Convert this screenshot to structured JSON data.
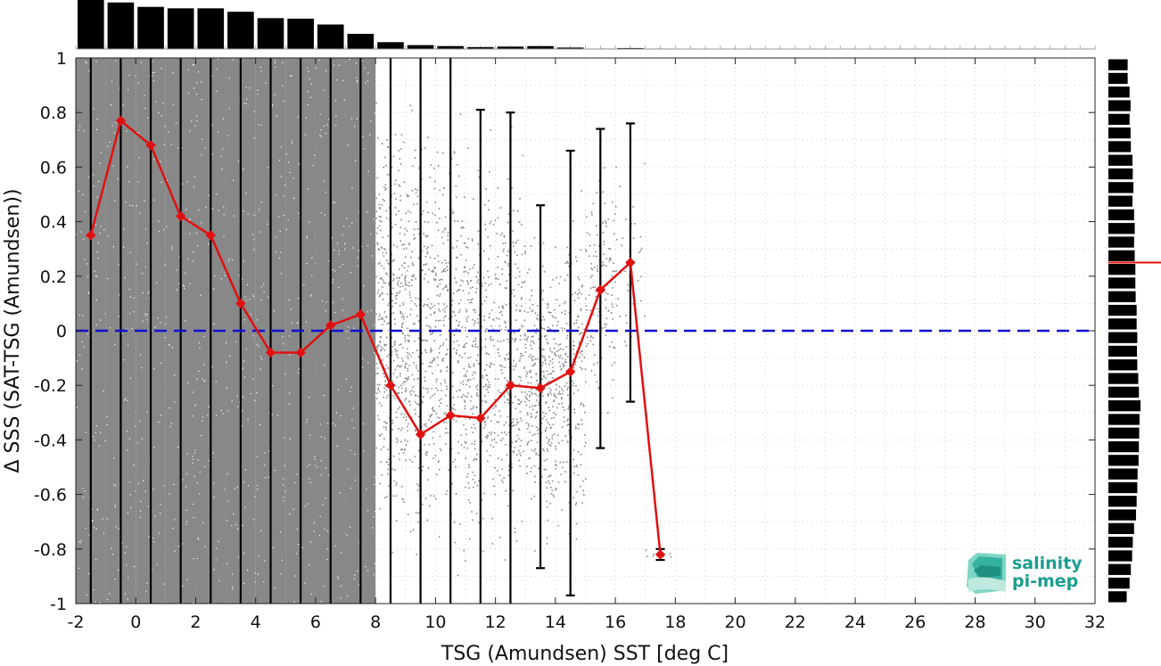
{
  "chart_data": {
    "type": "scatter",
    "xlabel": "TSG (Amundsen) SST [deg C]",
    "ylabel": "Δ SSS (SAT-TSG (Amundsen))",
    "xlim": [
      -2,
      32
    ],
    "ylim": [
      -1,
      1
    ],
    "xticks": [
      -2,
      0,
      2,
      4,
      6,
      8,
      10,
      12,
      14,
      16,
      18,
      20,
      22,
      24,
      26,
      28,
      30,
      32
    ],
    "yticks": [
      -1,
      -0.8,
      -0.6,
      -0.4,
      -0.2,
      0,
      0.2,
      0.4,
      0.6,
      0.8,
      1
    ],
    "grid": true,
    "zero_line": {
      "y": 0,
      "color": "#1010d0",
      "style": "dashed"
    },
    "scatter_color": "#888888",
    "scatter_density_by_bin": [
      1,
      1,
      1,
      1,
      1,
      1,
      1,
      1,
      1,
      1,
      0.45,
      0.35,
      0.3,
      0.3,
      0.3,
      0.35,
      0.25,
      0.15,
      0.04,
      0.01
    ],
    "bin_means": {
      "name": "",
      "color": "#e01010",
      "x": [
        -1.5,
        -0.5,
        0.5,
        1.5,
        2.5,
        3.5,
        4.5,
        5.5,
        6.5,
        7.5,
        8.5,
        9.5,
        10.5,
        11.5,
        12.5,
        13.5,
        14.5,
        15.5,
        16.5,
        17.5
      ],
      "y": [
        0.35,
        0.77,
        0.68,
        0.42,
        0.35,
        0.1,
        -0.08,
        -0.08,
        0.02,
        0.06,
        -0.2,
        -0.38,
        -0.31,
        -0.32,
        -0.2,
        -0.21,
        -0.15,
        0.15,
        0.25,
        -0.82
      ],
      "err_low": [
        -1,
        -1,
        -1,
        -1,
        -1,
        -1,
        -1,
        -1,
        -1,
        -1,
        -1,
        -1,
        -1,
        -1,
        -1,
        -0.87,
        -0.97,
        -0.43,
        -0.26,
        -0.84
      ],
      "err_high": [
        1,
        1,
        1,
        1,
        1,
        1,
        1,
        1,
        1,
        1,
        1,
        1,
        1,
        0.81,
        0.8,
        0.46,
        0.66,
        0.74,
        0.76,
        -0.8
      ]
    },
    "top_histogram": {
      "bins_x": [
        -1.5,
        -0.5,
        0.5,
        1.5,
        2.5,
        3.5,
        4.5,
        5.5,
        6.5,
        7.5,
        8.5,
        9.5,
        10.5,
        11.5,
        12.5,
        13.5,
        14.5,
        15.5,
        16.5,
        17.5
      ],
      "counts": [
        1.0,
        0.95,
        0.86,
        0.83,
        0.83,
        0.76,
        0.63,
        0.62,
        0.5,
        0.31,
        0.14,
        0.08,
        0.06,
        0.04,
        0.05,
        0.06,
        0.03,
        0.01,
        0.02,
        0.01
      ]
    },
    "right_histogram": {
      "bins_y": [
        0.975,
        0.925,
        0.875,
        0.825,
        0.775,
        0.725,
        0.675,
        0.625,
        0.575,
        0.525,
        0.475,
        0.425,
        0.375,
        0.325,
        0.275,
        0.225,
        0.175,
        0.125,
        0.075,
        0.025,
        -0.025,
        -0.075,
        -0.125,
        -0.175,
        -0.225,
        -0.275,
        -0.325,
        -0.375,
        -0.425,
        -0.475,
        -0.525,
        -0.575,
        -0.625,
        -0.675,
        -0.725,
        -0.775,
        -0.825,
        -0.875,
        -0.925,
        -0.975
      ],
      "counts": [
        0.6,
        0.6,
        0.66,
        0.69,
        0.66,
        0.69,
        0.7,
        0.75,
        0.76,
        0.78,
        0.75,
        0.8,
        0.82,
        0.8,
        0.82,
        0.84,
        0.84,
        0.85,
        0.88,
        0.88,
        0.9,
        0.89,
        0.9,
        0.93,
        0.95,
        1.0,
        0.97,
        0.96,
        0.95,
        0.94,
        0.91,
        0.9,
        0.88,
        0.86,
        0.8,
        0.76,
        0.74,
        0.7,
        0.66,
        0.57
      ],
      "mean_marker_y": 0.25
    }
  },
  "logo": {
    "line1": "salinity",
    "line2": "pi-mep",
    "color": "#1a9e8f"
  }
}
